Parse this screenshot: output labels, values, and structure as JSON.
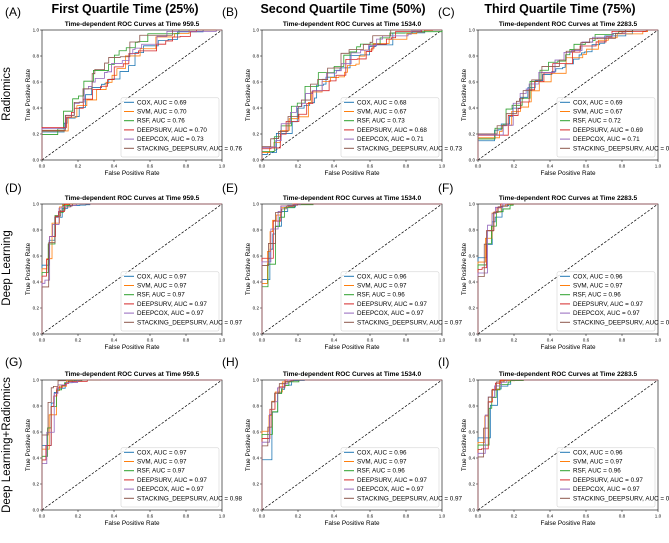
{
  "figure": {
    "column_titles": [
      "First Quartile Time (25%)",
      "Second Quartile Time (50%)",
      "Third Quartile Time (75%)"
    ],
    "row_titles": [
      "Radiomics",
      "Deep Learning",
      "Deep Learning+Radiomics"
    ]
  },
  "colors": {
    "COX": "#1f77b4",
    "SVM": "#ff7f0e",
    "RSF": "#2ca02c",
    "DEEPSURV": "#d62728",
    "DEEPCOX": "#9467bd",
    "STACKING_DEEPSURV": "#8c564b"
  },
  "chart_data": [
    {
      "letter": "(A)",
      "type": "line",
      "title": "Time-dependent ROC Curves at Time 959.5",
      "xlabel": "False Positive Rate",
      "ylabel": "True Positive Rate",
      "xlim": [
        0,
        1
      ],
      "ylim": [
        0,
        1
      ],
      "ticks": [
        "0.0",
        "0.2",
        "0.4",
        "0.6",
        "0.8",
        "1.0"
      ],
      "legend": "lower-right",
      "diagonal": true,
      "series": [
        {
          "name": "COX",
          "label": "COX, AUC = 0.69",
          "auc": 0.69
        },
        {
          "name": "SVM",
          "label": "SVM, AUC = 0.70",
          "auc": 0.7
        },
        {
          "name": "RSF",
          "label": "RSF, AUC = 0.76",
          "auc": 0.76
        },
        {
          "name": "DEEPSURV",
          "label": "DEEPSURV, AUC = 0.70",
          "auc": 0.7
        },
        {
          "name": "DEEPCOX",
          "label": "DEEPCOX, AUC = 0.73",
          "auc": 0.73
        },
        {
          "name": "STACKING_DEEPSURV",
          "label": "STACKING_DEEPSURV, AUC = 0.76",
          "auc": 0.76
        }
      ]
    },
    {
      "letter": "(B)",
      "type": "line",
      "title": "Time-dependent ROC Curves at Time 1534.0",
      "xlabel": "False Positive Rate",
      "ylabel": "True Positive Rate",
      "xlim": [
        0,
        1
      ],
      "ylim": [
        0,
        1
      ],
      "ticks": [
        "0.0",
        "0.2",
        "0.4",
        "0.6",
        "0.8",
        "1.0"
      ],
      "legend": "lower-right",
      "diagonal": true,
      "series": [
        {
          "name": "COX",
          "label": "COX, AUC = 0.68",
          "auc": 0.68
        },
        {
          "name": "SVM",
          "label": "SVM, AUC = 0.67",
          "auc": 0.67
        },
        {
          "name": "RSF",
          "label": "RSF, AUC = 0.73",
          "auc": 0.73
        },
        {
          "name": "DEEPSURV",
          "label": "DEEPSURV, AUC = 0.68",
          "auc": 0.68
        },
        {
          "name": "DEEPCOX",
          "label": "DEEPCOX, AUC = 0.71",
          "auc": 0.71
        },
        {
          "name": "STACKING_DEEPSURV",
          "label": "STACKING_DEEPSURV, AUC = 0.73",
          "auc": 0.73
        }
      ]
    },
    {
      "letter": "(C)",
      "type": "line",
      "title": "Time-dependent ROC Curves at Time 2283.5",
      "xlabel": "False Positive Rate",
      "ylabel": "True Positive Rate",
      "xlim": [
        0,
        1
      ],
      "ylim": [
        0,
        1
      ],
      "ticks": [
        "0.0",
        "0.2",
        "0.4",
        "0.6",
        "0.8",
        "1.0"
      ],
      "legend": "lower-right",
      "diagonal": true,
      "series": [
        {
          "name": "COX",
          "label": "COX, AUC = 0.69",
          "auc": 0.69
        },
        {
          "name": "SVM",
          "label": "SVM, AUC = 0.67",
          "auc": 0.67
        },
        {
          "name": "RSF",
          "label": "RSF, AUC = 0.72",
          "auc": 0.72
        },
        {
          "name": "DEEPSURV",
          "label": "DEEPSURV, AUC = 0.69",
          "auc": 0.69
        },
        {
          "name": "DEEPCOX",
          "label": "DEEPCOX, AUC = 0.71",
          "auc": 0.71
        },
        {
          "name": "STACKING_DEEPSURV",
          "label": "STACKING_DEEPSURV, AUC = 0.72",
          "auc": 0.72
        }
      ]
    },
    {
      "letter": "(D)",
      "type": "line",
      "title": "Time-dependent ROC Curves at Time 959.5",
      "xlabel": "False Positive Rate",
      "ylabel": "True Positive Rate",
      "xlim": [
        0,
        1
      ],
      "ylim": [
        0,
        1
      ],
      "ticks": [
        "0.0",
        "0.2",
        "0.4",
        "0.6",
        "0.8",
        "1.0"
      ],
      "legend": "lower-right",
      "diagonal": true,
      "series": [
        {
          "name": "COX",
          "label": "COX, AUC = 0.97",
          "auc": 0.97
        },
        {
          "name": "SVM",
          "label": "SVM, AUC = 0.97",
          "auc": 0.97
        },
        {
          "name": "RSF",
          "label": "RSF, AUC = 0.97",
          "auc": 0.97
        },
        {
          "name": "DEEPSURV",
          "label": "DEEPSURV, AUC = 0.97",
          "auc": 0.97
        },
        {
          "name": "DEEPCOX",
          "label": "DEEPCOX, AUC = 0.97",
          "auc": 0.97
        },
        {
          "name": "STACKING_DEEPSURV",
          "label": "STACKING_DEEPSURV, AUC = 0.97",
          "auc": 0.97
        }
      ]
    },
    {
      "letter": "(E)",
      "type": "line",
      "title": "Time-dependent ROC Curves at Time 1534.0",
      "xlabel": "False Positive Rate",
      "ylabel": "True Positive Rate",
      "xlim": [
        0,
        1
      ],
      "ylim": [
        0,
        1
      ],
      "ticks": [
        "0.0",
        "0.2",
        "0.4",
        "0.6",
        "0.8",
        "1.0"
      ],
      "legend": "lower-right",
      "diagonal": true,
      "series": [
        {
          "name": "COX",
          "label": "COX, AUC = 0.96",
          "auc": 0.96
        },
        {
          "name": "SVM",
          "label": "SVM, AUC = 0.97",
          "auc": 0.97
        },
        {
          "name": "RSF",
          "label": "RSF, AUC = 0.96",
          "auc": 0.96
        },
        {
          "name": "DEEPSURV",
          "label": "DEEPSURV, AUC = 0.97",
          "auc": 0.97
        },
        {
          "name": "DEEPCOX",
          "label": "DEEPCOX, AUC = 0.97",
          "auc": 0.97
        },
        {
          "name": "STACKING_DEEPSURV",
          "label": "STACKING_DEEPSURV, AUC = 0.97",
          "auc": 0.97
        }
      ]
    },
    {
      "letter": "(F)",
      "type": "line",
      "title": "Time-dependent ROC Curves at Time 2283.5",
      "xlabel": "False Positive Rate",
      "ylabel": "True Positive Rate",
      "xlim": [
        0,
        1
      ],
      "ylim": [
        0,
        1
      ],
      "ticks": [
        "0.0",
        "0.2",
        "0.4",
        "0.6",
        "0.8",
        "1.0"
      ],
      "legend": "lower-right",
      "diagonal": true,
      "series": [
        {
          "name": "COX",
          "label": "COX, AUC = 0.96",
          "auc": 0.96
        },
        {
          "name": "SVM",
          "label": "SVM, AUC = 0.97",
          "auc": 0.97
        },
        {
          "name": "RSF",
          "label": "RSF, AUC = 0.96",
          "auc": 0.96
        },
        {
          "name": "DEEPSURV",
          "label": "DEEPSURV, AUC = 0.97",
          "auc": 0.97
        },
        {
          "name": "DEEPCOX",
          "label": "DEEPCOX, AUC = 0.97",
          "auc": 0.97
        },
        {
          "name": "STACKING_DEEPSURV",
          "label": "STACKING_DEEPSURV, AUC = 0.97",
          "auc": 0.97
        }
      ]
    },
    {
      "letter": "(G)",
      "type": "line",
      "title": "Time-dependent ROC Curves at Time 959.5",
      "xlabel": "False Positive Rate",
      "ylabel": "True Positive Rate",
      "xlim": [
        0,
        1
      ],
      "ylim": [
        0,
        1
      ],
      "ticks": [
        "0.0",
        "0.2",
        "0.4",
        "0.6",
        "0.8",
        "1.0"
      ],
      "legend": "lower-right",
      "diagonal": true,
      "series": [
        {
          "name": "COX",
          "label": "COX, AUC = 0.97",
          "auc": 0.97
        },
        {
          "name": "SVM",
          "label": "SVM, AUC = 0.97",
          "auc": 0.97
        },
        {
          "name": "RSF",
          "label": "RSF, AUC = 0.97",
          "auc": 0.97
        },
        {
          "name": "DEEPSURV",
          "label": "DEEPSURV, AUC = 0.97",
          "auc": 0.97
        },
        {
          "name": "DEEPCOX",
          "label": "DEEPCOX, AUC = 0.97",
          "auc": 0.97
        },
        {
          "name": "STACKING_DEEPSURV",
          "label": "STACKING_DEEPSURV, AUC = 0.98",
          "auc": 0.98
        }
      ]
    },
    {
      "letter": "(H)",
      "type": "line",
      "title": "Time-dependent ROC Curves at Time 1534.0",
      "xlabel": "False Positive Rate",
      "ylabel": "True Positive Rate",
      "xlim": [
        0,
        1
      ],
      "ylim": [
        0,
        1
      ],
      "ticks": [
        "0.0",
        "0.2",
        "0.4",
        "0.6",
        "0.8",
        "1.0"
      ],
      "legend": "lower-right",
      "diagonal": true,
      "series": [
        {
          "name": "COX",
          "label": "COX, AUC = 0.96",
          "auc": 0.96
        },
        {
          "name": "SVM",
          "label": "SVM, AUC = 0.97",
          "auc": 0.97
        },
        {
          "name": "RSF",
          "label": "RSF, AUC = 0.96",
          "auc": 0.96
        },
        {
          "name": "DEEPSURV",
          "label": "DEEPSURV, AUC = 0.97",
          "auc": 0.97
        },
        {
          "name": "DEEPCOX",
          "label": "DEEPCOX, AUC = 0.97",
          "auc": 0.97
        },
        {
          "name": "STACKING_DEEPSURV",
          "label": "STACKING_DEEPSURV, AUC = 0.97",
          "auc": 0.97
        }
      ]
    },
    {
      "letter": "(I)",
      "type": "line",
      "title": "Time-dependent ROC Curves at Time 2283.5",
      "xlabel": "False Positive Rate",
      "ylabel": "True Positive Rate",
      "xlim": [
        0,
        1
      ],
      "ylim": [
        0,
        1
      ],
      "ticks": [
        "0.0",
        "0.2",
        "0.4",
        "0.6",
        "0.8",
        "1.0"
      ],
      "legend": "lower-right",
      "diagonal": true,
      "series": [
        {
          "name": "COX",
          "label": "COX, AUC = 0.96",
          "auc": 0.96
        },
        {
          "name": "SVM",
          "label": "SVM, AUC = 0.97",
          "auc": 0.97
        },
        {
          "name": "RSF",
          "label": "RSF, AUC = 0.96",
          "auc": 0.96
        },
        {
          "name": "DEEPSURV",
          "label": "DEEPSURV, AUC = 0.97",
          "auc": 0.97
        },
        {
          "name": "DEEPCOX",
          "label": "DEEPCOX, AUC = 0.97",
          "auc": 0.97
        },
        {
          "name": "STACKING_DEEPSURV",
          "label": "STACKING_DEEPSURV, AUC = 0.97",
          "auc": 0.97
        }
      ]
    }
  ]
}
